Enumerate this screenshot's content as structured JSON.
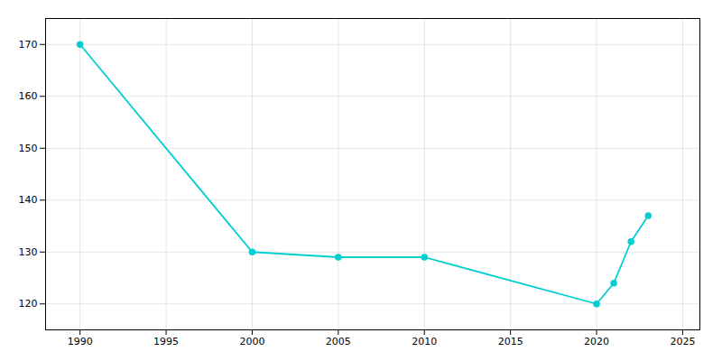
{
  "chart_data": {
    "type": "line",
    "x": [
      1990,
      2000,
      2005,
      2010,
      2020,
      2021,
      2022,
      2023
    ],
    "values": [
      170,
      130,
      129,
      129,
      120,
      124,
      132,
      137
    ],
    "color": "#00CED1",
    "marker": "circle",
    "xlim": [
      1988,
      2026
    ],
    "ylim": [
      115,
      175
    ],
    "xticks": [
      1990,
      1995,
      2000,
      2005,
      2010,
      2015,
      2020,
      2025
    ],
    "yticks": [
      120,
      130,
      140,
      150,
      160,
      170
    ],
    "grid": true
  }
}
